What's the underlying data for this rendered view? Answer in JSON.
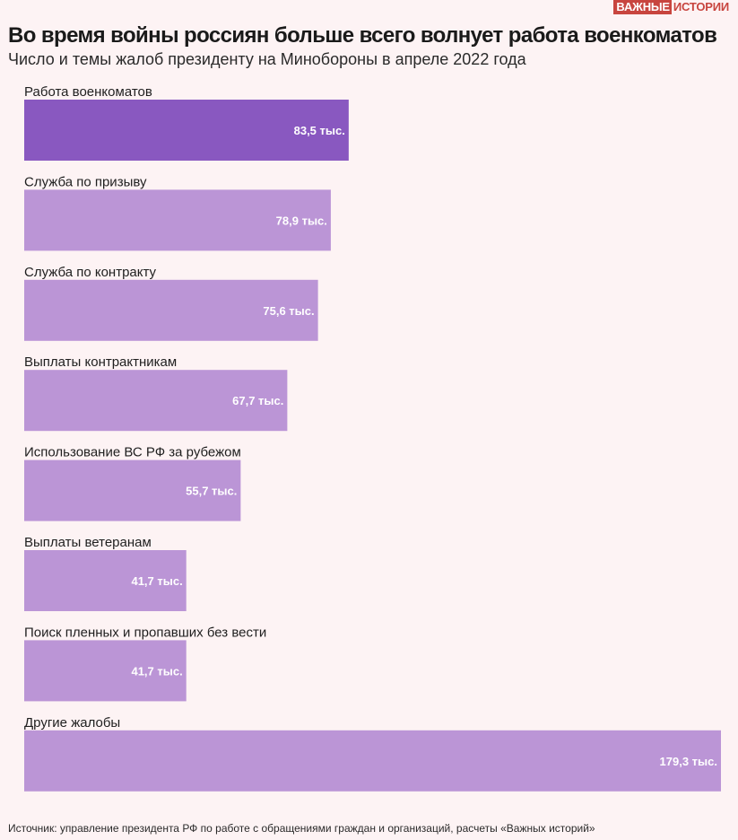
{
  "brand": {
    "part1": "ВАЖНЫЕ",
    "part2": "ИСТОРИИ",
    "color": "#c8453f"
  },
  "header": {
    "title": "Во время войны россиян больше всего волнует работа военкоматов",
    "subtitle": "Число и темы жалоб президенту на Минобороны в апреле 2022 года"
  },
  "chart_data": {
    "type": "bar",
    "orientation": "horizontal",
    "title": "Во время войны россиян больше всего волнует работа военкоматов",
    "subtitle": "Число и темы жалоб президенту на Минобороны в апреле 2022 года",
    "xlabel": "",
    "ylabel": "",
    "grid": false,
    "legend": "none",
    "unit": "тыс.",
    "categories": [
      "Работа военкоматов",
      "Служба по призыву",
      "Служба по контракту",
      "Выплаты контрактникам",
      "Использование ВС РФ за рубежом",
      "Выплаты ветеранам",
      "Поиск пленных и пропавших без вести",
      "Другие жалобы"
    ],
    "values": [
      83.5,
      78.9,
      75.6,
      67.7,
      55.7,
      41.7,
      41.7,
      179.3
    ],
    "value_labels": [
      "83,5 тыс.",
      "78,9 тыс.",
      "75,6 тыс.",
      "67,7 тыс.",
      "55,7 тыс.",
      "41,7 тыс.",
      "41,7 тыс.",
      "179,3 тыс."
    ],
    "xlim": [
      0,
      179.3
    ],
    "highlight_index": 0,
    "colors": {
      "highlight": "#8958c0",
      "bar": "#bb95d6"
    }
  },
  "source": "Источник: управление президента РФ по работе с обращениями граждан и организаций, расчеты «Важных историй»"
}
